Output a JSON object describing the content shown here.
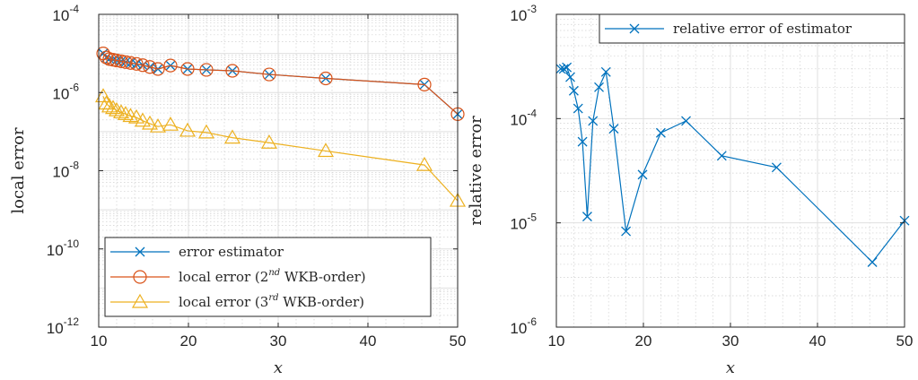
{
  "colors": {
    "estimator": "#0072bd",
    "wkb2": "#d95319",
    "wkb3": "#edb120",
    "axis": "#262626",
    "grid_major": "#dfdfdf",
    "grid_minor": "#d0d0d0"
  },
  "chart_data": [
    {
      "type": "line",
      "xlabel": "x",
      "ylabel": "local error",
      "xlim": [
        10,
        50
      ],
      "ylim_exp": [
        -12,
        -4
      ],
      "yscale": "log",
      "grid": "major and minor",
      "legend_position": "bottom-left",
      "x_ticks": [
        "10",
        "20",
        "30",
        "40",
        "50"
      ],
      "y_ticks": [
        {
          "base": "10",
          "exp": "-12"
        },
        {
          "base": "10",
          "exp": "-10"
        },
        {
          "base": "10",
          "exp": "-8"
        },
        {
          "base": "10",
          "exp": "-6"
        },
        {
          "base": "10",
          "exp": "-4"
        }
      ],
      "legend": [
        {
          "series": "estimator",
          "text": "error estimator",
          "text_end": "",
          "sup": "",
          "marker": "x"
        },
        {
          "series": "wkb2",
          "text": "local error (2",
          "sup": "nd",
          "text_end": " WKB-order)",
          "marker": "circle"
        },
        {
          "series": "wkb3",
          "text": "local error (3",
          "sup": "rd",
          "text_end": " WKB-order)",
          "marker": "triangle"
        }
      ],
      "x": [
        10.5,
        10.85,
        11.2,
        11.6,
        12.0,
        12.5,
        13.0,
        13.55,
        14.2,
        14.9,
        15.7,
        16.6,
        18.0,
        19.9,
        22.0,
        24.9,
        29.0,
        35.3,
        46.3,
        50.0
      ],
      "series": [
        {
          "key": "estimator",
          "values": [
            1e-05,
            7.9e-06,
            7.2e-06,
            6.9e-06,
            6.6e-06,
            6.3e-06,
            6e-06,
            5.7e-06,
            5.4e-06,
            5e-06,
            4.5e-06,
            4e-06,
            4.9e-06,
            4e-06,
            3.8e-06,
            3.6e-06,
            2.9e-06,
            2.3e-06,
            1.6e-06,
            2.8e-07
          ]
        },
        {
          "key": "wkb2",
          "values": [
            1e-05,
            7.9e-06,
            7.2e-06,
            6.9e-06,
            6.6e-06,
            6.3e-06,
            6e-06,
            5.7e-06,
            5.4e-06,
            5e-06,
            4.5e-06,
            4e-06,
            4.9e-06,
            4e-06,
            3.8e-06,
            3.6e-06,
            2.9e-06,
            2.3e-06,
            1.6e-06,
            2.8e-07
          ]
        },
        {
          "key": "wkb3",
          "values": [
            8e-07,
            5.2e-07,
            4.4e-07,
            4e-07,
            3.5e-07,
            3.1e-07,
            2.8e-07,
            2.5e-07,
            2.3e-07,
            1.9e-07,
            1.6e-07,
            1.35e-07,
            1.5e-07,
            1.05e-07,
            9.5e-08,
            7e-08,
            5.2e-08,
            3.2e-08,
            1.4e-08,
            1.7e-09
          ]
        }
      ]
    },
    {
      "type": "line",
      "xlabel": "x",
      "ylabel": "relative error",
      "xlim": [
        10,
        50
      ],
      "ylim_exp": [
        -6,
        -3
      ],
      "yscale": "log",
      "grid": "major and minor",
      "legend_position": "top-right",
      "x_ticks": [
        "10",
        "20",
        "30",
        "40",
        "50"
      ],
      "y_ticks": [
        {
          "base": "10",
          "exp": "-6"
        },
        {
          "base": "10",
          "exp": "-5"
        },
        {
          "base": "10",
          "exp": "-4"
        },
        {
          "base": "10",
          "exp": "-3"
        }
      ],
      "legend": [
        {
          "series": "estimator",
          "text": "relative error of estimator",
          "text_end": "",
          "sup": "",
          "marker": "x"
        }
      ],
      "x": [
        10.5,
        10.85,
        11.2,
        11.6,
        12.0,
        12.5,
        13.0,
        13.55,
        14.2,
        14.9,
        15.7,
        16.6,
        18.0,
        19.9,
        22.0,
        24.9,
        29.0,
        35.3,
        46.3,
        50.0
      ],
      "series": [
        {
          "key": "estimator",
          "values": [
            0.0003,
            0.0003,
            0.00031,
            0.00025,
            0.000185,
            0.000125,
            6e-05,
            1.15e-05,
            9.5e-05,
            0.0002,
            0.00028,
            8e-05,
            8.3e-06,
            2.9e-05,
            7.3e-05,
            9.5e-05,
            4.4e-05,
            3.4e-05,
            4.2e-06,
            1.05e-05
          ]
        }
      ]
    }
  ]
}
